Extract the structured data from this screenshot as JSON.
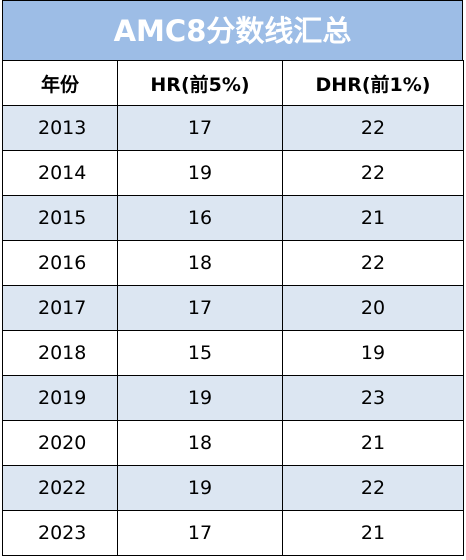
{
  "title": "AMC8分数线汇总",
  "table": {
    "header": [
      "年份",
      "HR(前5%)",
      "DHR(前1%)"
    ],
    "rows": [
      [
        "2013",
        "17",
        "22"
      ],
      [
        "2014",
        "19",
        "22"
      ],
      [
        "2015",
        "16",
        "21"
      ],
      [
        "2016",
        "18",
        "22"
      ],
      [
        "2017",
        "17",
        "20"
      ],
      [
        "2018",
        "15",
        "19"
      ],
      [
        "2019",
        "19",
        "23"
      ],
      [
        "2020",
        "18",
        "21"
      ],
      [
        "2022",
        "19",
        "22"
      ],
      [
        "2023",
        "17",
        "21"
      ]
    ]
  }
}
